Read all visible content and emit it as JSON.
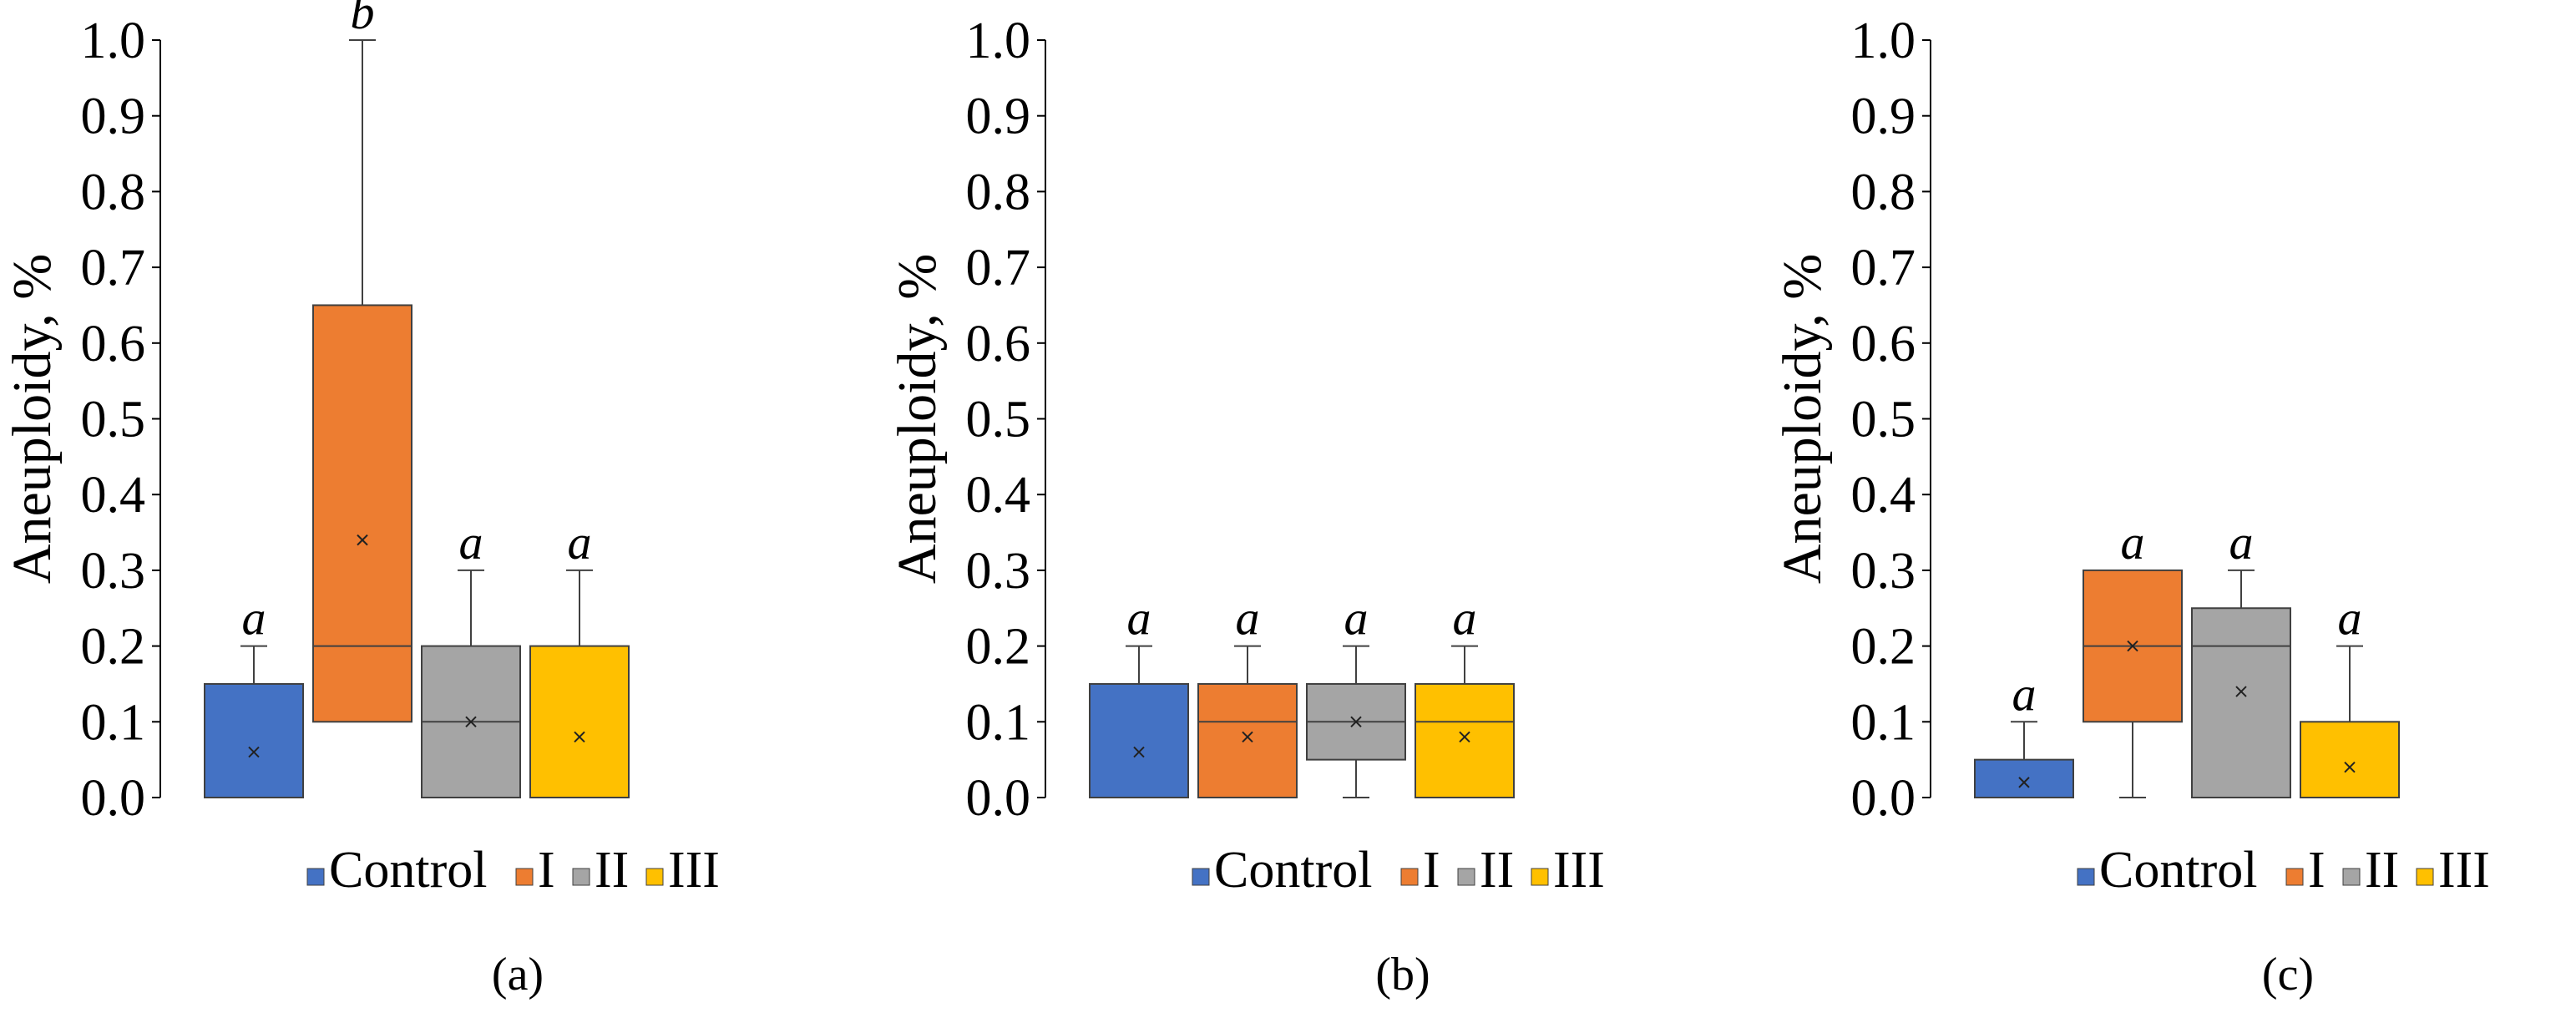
{
  "colors": {
    "Control": "#4472C4",
    "I": "#ED7D31",
    "II": "#A5A5A5",
    "III": "#FFC000"
  },
  "chart_data": [
    {
      "type": "boxplot",
      "panel_label": "(a)",
      "ylabel": "Aneuploidy, %",
      "ylim": [
        0,
        1
      ],
      "yticks": [
        "0.0",
        "0.1",
        "0.2",
        "0.3",
        "0.4",
        "0.5",
        "0.6",
        "0.7",
        "0.8",
        "0.9",
        "1.0"
      ],
      "legend": [
        "Control",
        "I",
        "II",
        "III"
      ],
      "groups": [
        {
          "name": "Control",
          "whisker_low": 0,
          "q1": 0,
          "median": 0,
          "q3": 0.15,
          "whisker_high": 0.2,
          "mean": 0.06,
          "letter": "a"
        },
        {
          "name": "I",
          "whisker_low": 0.1,
          "q1": 0.1,
          "median": 0.2,
          "q3": 0.65,
          "whisker_high": 1.0,
          "mean": 0.34,
          "letter": "b"
        },
        {
          "name": "II",
          "whisker_low": 0,
          "q1": 0,
          "median": 0.1,
          "q3": 0.2,
          "whisker_high": 0.3,
          "mean": 0.1,
          "letter": "a"
        },
        {
          "name": "III",
          "whisker_low": 0,
          "q1": 0,
          "median": 0,
          "q3": 0.2,
          "whisker_high": 0.3,
          "mean": 0.08,
          "letter": "a"
        }
      ]
    },
    {
      "type": "boxplot",
      "panel_label": "(b)",
      "ylabel": "Aneuploidy, %",
      "ylim": [
        0,
        1
      ],
      "yticks": [
        "0.0",
        "0.1",
        "0.2",
        "0.3",
        "0.4",
        "0.5",
        "0.6",
        "0.7",
        "0.8",
        "0.9",
        "1.0"
      ],
      "legend": [
        "Control",
        "I",
        "II",
        "III"
      ],
      "groups": [
        {
          "name": "Control",
          "whisker_low": 0,
          "q1": 0,
          "median": 0,
          "q3": 0.15,
          "whisker_high": 0.2,
          "mean": 0.06,
          "letter": "a"
        },
        {
          "name": "I",
          "whisker_low": 0,
          "q1": 0,
          "median": 0.1,
          "q3": 0.15,
          "whisker_high": 0.2,
          "mean": 0.08,
          "letter": "a"
        },
        {
          "name": "II",
          "whisker_low": 0,
          "q1": 0.05,
          "median": 0.1,
          "q3": 0.15,
          "whisker_high": 0.2,
          "mean": 0.1,
          "letter": "a"
        },
        {
          "name": "III",
          "whisker_low": 0,
          "q1": 0,
          "median": 0.1,
          "q3": 0.15,
          "whisker_high": 0.2,
          "mean": 0.08,
          "letter": "a"
        }
      ]
    },
    {
      "type": "boxplot",
      "panel_label": "(c)",
      "ylabel": "Aneuploidy, %",
      "ylim": [
        0,
        1
      ],
      "yticks": [
        "0.0",
        "0.1",
        "0.2",
        "0.3",
        "0.4",
        "0.5",
        "0.6",
        "0.7",
        "0.8",
        "0.9",
        "1.0"
      ],
      "legend": [
        "Control",
        "I",
        "II",
        "III"
      ],
      "groups": [
        {
          "name": "Control",
          "whisker_low": 0,
          "q1": 0,
          "median": 0,
          "q3": 0.05,
          "whisker_high": 0.1,
          "mean": 0.02,
          "letter": "a"
        },
        {
          "name": "I",
          "whisker_low": 0,
          "q1": 0.1,
          "median": 0.2,
          "q3": 0.3,
          "whisker_high": 0.3,
          "mean": 0.2,
          "letter": "a"
        },
        {
          "name": "II",
          "whisker_low": 0,
          "q1": 0,
          "median": 0.2,
          "q3": 0.25,
          "whisker_high": 0.3,
          "mean": 0.14,
          "letter": "a"
        },
        {
          "name": "III",
          "whisker_low": 0,
          "q1": 0,
          "median": 0,
          "q3": 0.1,
          "whisker_high": 0.2,
          "mean": 0.04,
          "letter": "a"
        }
      ]
    }
  ]
}
